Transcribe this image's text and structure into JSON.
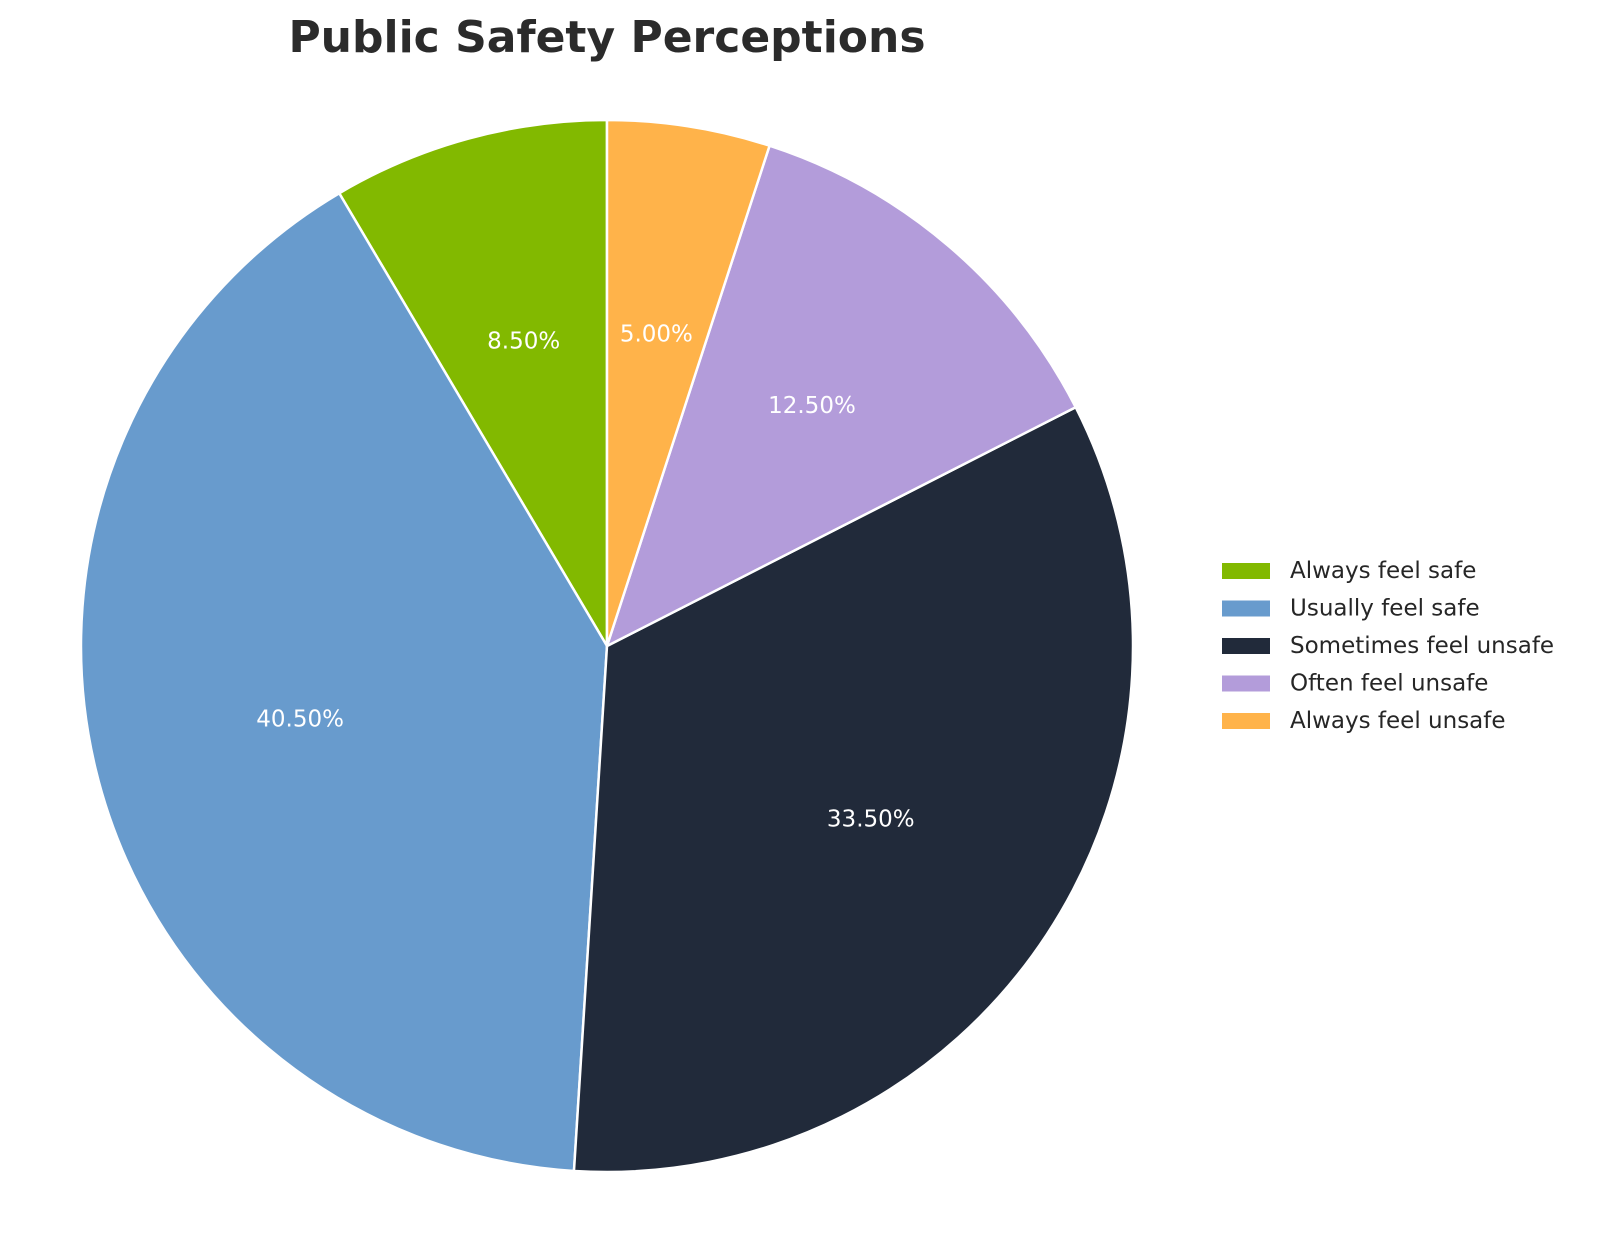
{
  "chart_data": {
    "type": "pie",
    "title": "Public Safety Perceptions",
    "start_angle_deg": 90,
    "direction": "counterclockwise",
    "legend_position": "right",
    "slices": [
      {
        "label": "Always feel safe",
        "value": 8.5,
        "display": "8.50%",
        "color": "#82b900"
      },
      {
        "label": "Usually feel safe",
        "value": 40.5,
        "display": "40.50%",
        "color": "#689bcd"
      },
      {
        "label": "Sometimes feel unsafe",
        "value": 33.5,
        "display": "33.50%",
        "color": "#212a3a"
      },
      {
        "label": "Often feel unsafe",
        "value": 12.5,
        "display": "12.50%",
        "color": "#b39cda"
      },
      {
        "label": "Always feel unsafe",
        "value": 5.0,
        "display": "5.00%",
        "color": "#ffb34a"
      }
    ]
  }
}
